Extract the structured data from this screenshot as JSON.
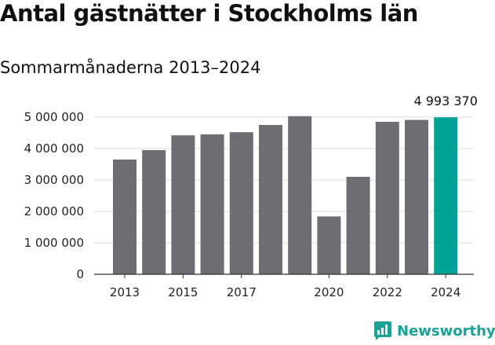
{
  "header": {
    "title": "Antal gästnätter i Stockholms län",
    "subtitle": "Sommarmånaderna 2013–2024"
  },
  "chart_data": {
    "type": "bar",
    "categories": [
      "2013",
      "2014",
      "2015",
      "2016",
      "2017",
      "2018",
      "2019",
      "2020",
      "2021",
      "2022",
      "2023",
      "2024"
    ],
    "x_tick_labels": [
      "2013",
      "",
      "2015",
      "",
      "2017",
      "",
      "",
      "2020",
      "",
      "2022",
      "",
      "2024"
    ],
    "values": [
      3650000,
      3950000,
      4420000,
      4450000,
      4520000,
      4750000,
      5030000,
      1840000,
      3100000,
      4850000,
      4910000,
      4993370
    ],
    "ylim": [
      0,
      5000000
    ],
    "yticks": [
      0,
      1000000,
      2000000,
      3000000,
      4000000,
      5000000
    ],
    "ytick_labels": [
      "0",
      "1 000 000",
      "2 000 000",
      "3 000 000",
      "4 000 000",
      "5 000 000"
    ],
    "highlight_index": 11,
    "highlight_label": "4 993 370",
    "grid": true,
    "colors": {
      "bar": "#6e6d72",
      "highlight": "#00a295",
      "grid": "#dddddd",
      "text": "#222222"
    }
  },
  "branding": {
    "logo_text": "Newsworthy",
    "logo_icon": "bar-chart-speech-icon",
    "color": "#1aa394"
  }
}
